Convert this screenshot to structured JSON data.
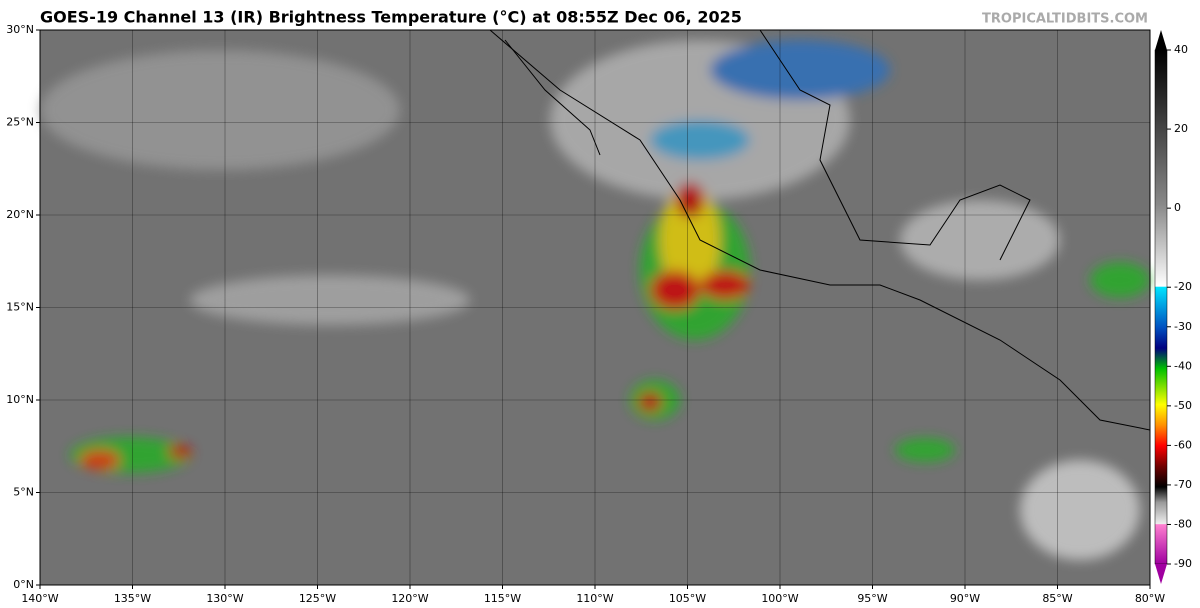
{
  "header": {
    "title": "GOES-19 Channel 13 (IR) Brightness Temperature (°C) at 08:55Z Dec 06, 2025",
    "credit": "TROPICALTIDBITS.COM"
  },
  "map": {
    "lon_range": [
      -140,
      -80
    ],
    "lat_range": [
      0,
      30
    ],
    "lon_ticks": [
      {
        "value": -140,
        "label": "140°W"
      },
      {
        "value": -135,
        "label": "135°W"
      },
      {
        "value": -130,
        "label": "130°W"
      },
      {
        "value": -125,
        "label": "125°W"
      },
      {
        "value": -120,
        "label": "120°W"
      },
      {
        "value": -115,
        "label": "115°W"
      },
      {
        "value": -110,
        "label": "110°W"
      },
      {
        "value": -105,
        "label": "105°W"
      },
      {
        "value": -100,
        "label": "100°W"
      },
      {
        "value": -95,
        "label": "95°W"
      },
      {
        "value": -90,
        "label": "90°W"
      },
      {
        "value": -85,
        "label": "85°W"
      },
      {
        "value": -80,
        "label": "80°W"
      }
    ],
    "lat_ticks": [
      {
        "value": 0,
        "label": "0°N"
      },
      {
        "value": 5,
        "label": "5°N"
      },
      {
        "value": 10,
        "label": "10°N"
      },
      {
        "value": 15,
        "label": "15°N"
      },
      {
        "value": 20,
        "label": "20°N"
      },
      {
        "value": 25,
        "label": "25°N"
      },
      {
        "value": 30,
        "label": "30°N"
      }
    ]
  },
  "colorbar": {
    "range": [
      -90,
      40
    ],
    "ticks": [
      40,
      20,
      0,
      -20,
      -30,
      -40,
      -50,
      -60,
      -70,
      -80,
      -90
    ]
  }
}
